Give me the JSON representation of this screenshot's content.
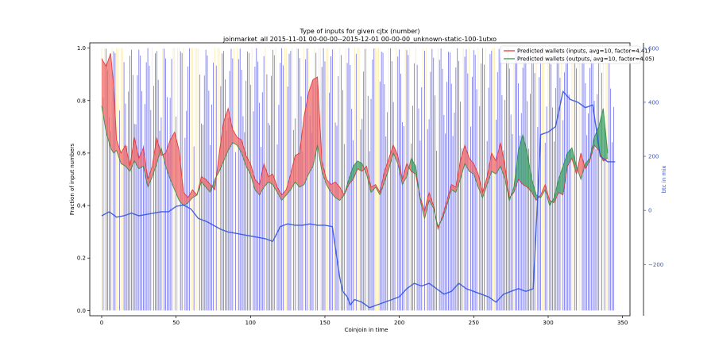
{
  "chart_data": {
    "type": "line",
    "title": "Type of inputs for given cjtx (number)",
    "subtitle": "joinmarket_all 2015-11-01 00-00-00--2015-12-01 00-00-00_unknown-static-100-1utxo",
    "xlabel": "Coinjoin in time",
    "ylabel_left": "Fraction of input numbers",
    "ylabel_right": "btc in mix",
    "x_ticks": [
      "0",
      "50",
      "100",
      "150",
      "200",
      "250",
      "300",
      "350"
    ],
    "y_left_ticks": [
      "0.0",
      "0.2",
      "0.4",
      "0.6",
      "0.8",
      "1.0"
    ],
    "y_right_ticks": [
      "−200",
      "0",
      "200",
      "400",
      "600"
    ],
    "xlim": [
      -8,
      355
    ],
    "ylim_left": [
      -0.02,
      1.02
    ],
    "ylim_right": [
      -390,
      620
    ],
    "legend_position": "top-right",
    "series": [
      {
        "name": "Predicted wallets (inputs, avg=10, factor=4.41)",
        "color": "#e03030",
        "x": [
          0,
          3,
          6,
          8,
          10,
          13,
          16,
          19,
          22,
          25,
          28,
          31,
          34,
          37,
          40,
          43,
          46,
          49,
          52,
          55,
          58,
          61,
          64,
          67,
          70,
          73,
          76,
          79,
          82,
          85,
          88,
          91,
          94,
          97,
          100,
          103,
          106,
          109,
          112,
          115,
          118,
          121,
          124,
          127,
          130,
          133,
          136,
          139,
          142,
          145,
          148,
          151,
          154,
          157,
          160,
          163,
          166,
          169,
          172,
          175,
          178,
          181,
          184,
          187,
          190,
          193,
          196,
          199,
          202,
          205,
          208,
          211,
          214,
          217,
          220,
          223,
          226,
          229,
          232,
          235,
          238,
          241,
          244,
          247,
          250,
          253,
          256,
          259,
          262,
          265,
          268,
          271,
          274,
          277,
          280,
          283,
          286,
          289,
          292,
          295,
          298,
          301,
          304,
          307,
          310,
          313,
          316,
          319,
          322,
          325,
          328,
          331,
          334,
          337,
          340
        ],
        "y": [
          0.96,
          0.93,
          0.98,
          0.86,
          0.65,
          0.6,
          0.63,
          0.55,
          0.66,
          0.58,
          0.62,
          0.5,
          0.55,
          0.66,
          0.59,
          0.6,
          0.65,
          0.68,
          0.61,
          0.45,
          0.43,
          0.46,
          0.44,
          0.51,
          0.5,
          0.48,
          0.46,
          0.6,
          0.72,
          0.77,
          0.69,
          0.66,
          0.65,
          0.59,
          0.56,
          0.5,
          0.48,
          0.56,
          0.51,
          0.52,
          0.47,
          0.44,
          0.46,
          0.52,
          0.59,
          0.6,
          0.74,
          0.83,
          0.88,
          0.89,
          0.57,
          0.5,
          0.48,
          0.49,
          0.47,
          0.44,
          0.48,
          0.5,
          0.54,
          0.53,
          0.55,
          0.47,
          0.48,
          0.45,
          0.53,
          0.58,
          0.63,
          0.59,
          0.5,
          0.56,
          0.53,
          0.52,
          0.43,
          0.38,
          0.45,
          0.4,
          0.31,
          0.36,
          0.42,
          0.48,
          0.47,
          0.57,
          0.63,
          0.58,
          0.56,
          0.52,
          0.45,
          0.51,
          0.6,
          0.57,
          0.64,
          0.55,
          0.43,
          0.45,
          0.5,
          0.48,
          0.47,
          0.45,
          0.42,
          0.44,
          0.48,
          0.42,
          0.41,
          0.45,
          0.44,
          0.55,
          0.58,
          0.52,
          0.6,
          0.54,
          0.57,
          0.63,
          0.61,
          0.57,
          0.58
        ]
      },
      {
        "name": "Predicted wallets (outputs, avg=10, factor=4.05)",
        "color": "#2e8b3e",
        "x": [
          0,
          3,
          6,
          8,
          10,
          13,
          16,
          19,
          22,
          25,
          28,
          31,
          34,
          37,
          40,
          43,
          46,
          49,
          52,
          55,
          58,
          61,
          64,
          67,
          70,
          73,
          76,
          79,
          82,
          85,
          88,
          91,
          94,
          97,
          100,
          103,
          106,
          109,
          112,
          115,
          118,
          121,
          124,
          127,
          130,
          133,
          136,
          139,
          142,
          145,
          148,
          151,
          154,
          157,
          160,
          163,
          166,
          169,
          172,
          175,
          178,
          181,
          184,
          187,
          190,
          193,
          196,
          199,
          202,
          205,
          208,
          211,
          214,
          217,
          220,
          223,
          226,
          229,
          232,
          235,
          238,
          241,
          244,
          247,
          250,
          253,
          256,
          259,
          262,
          265,
          268,
          271,
          274,
          277,
          280,
          283,
          286,
          289,
          292,
          295,
          298,
          301,
          304,
          307,
          310,
          313,
          316,
          319,
          322,
          325,
          328,
          331,
          334,
          337,
          340
        ],
        "y": [
          0.78,
          0.68,
          0.62,
          0.6,
          0.61,
          0.56,
          0.55,
          0.53,
          0.57,
          0.54,
          0.55,
          0.47,
          0.51,
          0.56,
          0.62,
          0.55,
          0.5,
          0.46,
          0.42,
          0.4,
          0.41,
          0.43,
          0.44,
          0.49,
          0.47,
          0.45,
          0.5,
          0.53,
          0.57,
          0.61,
          0.64,
          0.63,
          0.6,
          0.55,
          0.52,
          0.46,
          0.44,
          0.47,
          0.49,
          0.48,
          0.45,
          0.42,
          0.44,
          0.46,
          0.49,
          0.47,
          0.48,
          0.52,
          0.55,
          0.63,
          0.53,
          0.48,
          0.45,
          0.43,
          0.42,
          0.44,
          0.5,
          0.55,
          0.57,
          0.56,
          0.52,
          0.45,
          0.47,
          0.44,
          0.49,
          0.54,
          0.6,
          0.56,
          0.48,
          0.51,
          0.58,
          0.55,
          0.42,
          0.35,
          0.42,
          0.39,
          0.32,
          0.35,
          0.4,
          0.46,
          0.45,
          0.5,
          0.56,
          0.53,
          0.52,
          0.47,
          0.43,
          0.48,
          0.53,
          0.52,
          0.55,
          0.5,
          0.42,
          0.47,
          0.61,
          0.67,
          0.6,
          0.5,
          0.44,
          0.43,
          0.46,
          0.4,
          0.43,
          0.5,
          0.55,
          0.6,
          0.62,
          0.55,
          0.5,
          0.56,
          0.58,
          0.66,
          0.7,
          0.77,
          0.6
        ]
      },
      {
        "name": "btc in mix",
        "color": "#3355dd",
        "axis": "right",
        "x": [
          0,
          5,
          10,
          15,
          20,
          25,
          30,
          35,
          40,
          45,
          50,
          55,
          60,
          65,
          70,
          75,
          80,
          85,
          90,
          95,
          100,
          105,
          110,
          115,
          120,
          125,
          130,
          135,
          140,
          145,
          150,
          155,
          160,
          162,
          165,
          167,
          170,
          175,
          180,
          185,
          190,
          195,
          200,
          205,
          210,
          215,
          220,
          225,
          230,
          235,
          240,
          245,
          250,
          255,
          260,
          265,
          270,
          275,
          280,
          285,
          290,
          295,
          300,
          305,
          310,
          315,
          320,
          325,
          330,
          335,
          340,
          345
        ],
        "y": [
          -20,
          -5,
          -25,
          -20,
          -10,
          -20,
          -15,
          -10,
          -5,
          -5,
          15,
          20,
          5,
          -30,
          -40,
          -55,
          -70,
          -80,
          -85,
          -90,
          -95,
          -100,
          -105,
          -115,
          -60,
          -50,
          -55,
          -55,
          -50,
          -55,
          -55,
          -60,
          -250,
          -300,
          -320,
          -350,
          -330,
          -340,
          -360,
          -350,
          -340,
          -330,
          -320,
          -290,
          -270,
          -280,
          -270,
          -290,
          -310,
          -300,
          -270,
          -290,
          -300,
          -310,
          -320,
          -340,
          -310,
          -300,
          -290,
          -300,
          -290,
          280,
          290,
          310,
          440,
          410,
          400,
          380,
          390,
          200,
          180,
          180
        ]
      }
    ],
    "bars": {
      "name": "btc in mix bars (background)",
      "color_blue": "#4040e0",
      "color_light": "#fce9a8",
      "count": 345
    }
  }
}
